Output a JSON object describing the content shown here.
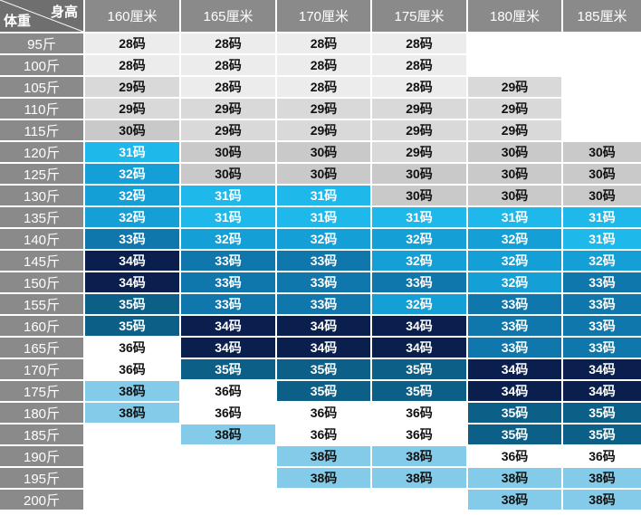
{
  "corner": {
    "height_label": "身高",
    "weight_label": "体重"
  },
  "heights": [
    "160厘米",
    "165厘米",
    "170厘米",
    "175厘米",
    "180厘米",
    "185厘米"
  ],
  "rows": [
    {
      "weight": "95斤",
      "cells": [
        "28码",
        "28码",
        "28码",
        "28码",
        "",
        ""
      ]
    },
    {
      "weight": "100斤",
      "cells": [
        "28码",
        "28码",
        "28码",
        "28码",
        "",
        ""
      ]
    },
    {
      "weight": "105斤",
      "cells": [
        "29码",
        "28码",
        "28码",
        "28码",
        "29码",
        ""
      ]
    },
    {
      "weight": "110斤",
      "cells": [
        "29码",
        "29码",
        "29码",
        "29码",
        "29码",
        ""
      ]
    },
    {
      "weight": "115斤",
      "cells": [
        "30码",
        "29码",
        "29码",
        "29码",
        "29码",
        ""
      ]
    },
    {
      "weight": "120斤",
      "cells": [
        "31码",
        "30码",
        "30码",
        "29码",
        "30码",
        "30码"
      ]
    },
    {
      "weight": "125斤",
      "cells": [
        "32码",
        "30码",
        "30码",
        "30码",
        "30码",
        "30码"
      ]
    },
    {
      "weight": "130斤",
      "cells": [
        "32码",
        "31码",
        "31码",
        "30码",
        "30码",
        "30码"
      ]
    },
    {
      "weight": "135斤",
      "cells": [
        "32码",
        "31码",
        "31码",
        "31码",
        "31码",
        "31码"
      ]
    },
    {
      "weight": "140斤",
      "cells": [
        "33码",
        "32码",
        "32码",
        "32码",
        "32码",
        "31码"
      ]
    },
    {
      "weight": "145斤",
      "cells": [
        "34码",
        "33码",
        "33码",
        "32码",
        "32码",
        "32码"
      ]
    },
    {
      "weight": "150斤",
      "cells": [
        "34码",
        "33码",
        "33码",
        "33码",
        "32码",
        "33码"
      ]
    },
    {
      "weight": "155斤",
      "cells": [
        "35码",
        "33码",
        "33码",
        "32码",
        "33码",
        "33码"
      ]
    },
    {
      "weight": "160斤",
      "cells": [
        "35码",
        "34码",
        "34码",
        "34码",
        "33码",
        "33码"
      ]
    },
    {
      "weight": "165斤",
      "cells": [
        "36码",
        "34码",
        "34码",
        "34码",
        "33码",
        "33码"
      ]
    },
    {
      "weight": "170斤",
      "cells": [
        "36码",
        "35码",
        "35码",
        "35码",
        "34码",
        "34码"
      ]
    },
    {
      "weight": "175斤",
      "cells": [
        "38码",
        "36码",
        "35码",
        "35码",
        "34码",
        "34码"
      ]
    },
    {
      "weight": "180斤",
      "cells": [
        "38码",
        "36码",
        "36码",
        "36码",
        "35码",
        "35码"
      ]
    },
    {
      "weight": "185斤",
      "cells": [
        "",
        "38码",
        "36码",
        "36码",
        "35码",
        "35码"
      ]
    },
    {
      "weight": "190斤",
      "cells": [
        "",
        "",
        "38码",
        "38码",
        "36码",
        "36码"
      ]
    },
    {
      "weight": "195斤",
      "cells": [
        "",
        "",
        "38码",
        "38码",
        "38码",
        "38码"
      ]
    },
    {
      "weight": "200斤",
      "cells": [
        "",
        "",
        "",
        "",
        "38码",
        "38码"
      ]
    }
  ],
  "colors": {
    "header_gray": "#8a8a8a",
    "28码": "#ececec",
    "29码": "#d9d9d9",
    "30码": "#c9c9c9",
    "31码": "#1fb8ea",
    "32码": "#149fd6",
    "33码": "#0f77ab",
    "34码": "#0a1f4e",
    "35码": "#0c5f86",
    "36码": "#ffffff",
    "38码": "#83cbe8"
  }
}
